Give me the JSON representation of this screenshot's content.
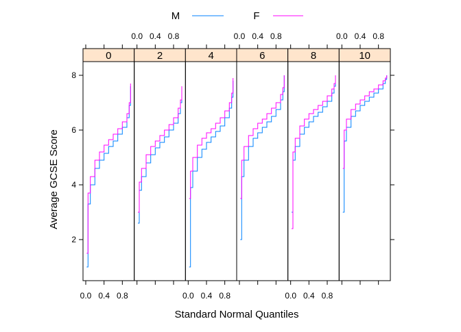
{
  "chart_data": {
    "type": "line",
    "plot_kind": "empirical quantile (step) curves, trellis panels",
    "xlabel": "Standard Normal Quantiles",
    "ylabel": "Average GCSE Score",
    "xlim": [
      0,
      1
    ],
    "ylim": [
      0.5,
      8.5
    ],
    "x_ticks": [
      0.0,
      0.4,
      0.8
    ],
    "x_tick_labels": [
      "0.0",
      "0.4",
      "0.8"
    ],
    "y_ticks": [
      2,
      4,
      6,
      8
    ],
    "y_tick_labels": [
      "2",
      "4",
      "6",
      "8"
    ],
    "grid": false,
    "legend": {
      "position": "top",
      "entries": [
        {
          "label": "M",
          "color": "#0080ff"
        },
        {
          "label": "F",
          "color": "#ff00ff"
        }
      ]
    },
    "strip_color": "#ffe5cc",
    "panels": [
      {
        "label": "0",
        "series": [
          {
            "name": "M",
            "x": [
              0.02,
              0.05,
              0.1,
              0.2,
              0.3,
              0.4,
              0.5,
              0.6,
              0.7,
              0.8,
              0.9,
              0.95,
              0.98
            ],
            "y": [
              1.0,
              3.3,
              4.0,
              4.6,
              4.9,
              5.15,
              5.4,
              5.6,
              5.85,
              6.1,
              6.45,
              6.9,
              7.6
            ]
          },
          {
            "name": "F",
            "x": [
              0.02,
              0.05,
              0.1,
              0.2,
              0.3,
              0.4,
              0.5,
              0.6,
              0.7,
              0.8,
              0.9,
              0.95,
              0.98
            ],
            "y": [
              1.5,
              3.7,
              4.3,
              4.9,
              5.2,
              5.45,
              5.65,
              5.85,
              6.05,
              6.3,
              6.6,
              7.0,
              7.7
            ]
          }
        ]
      },
      {
        "label": "2",
        "series": [
          {
            "name": "M",
            "x": [
              0.02,
              0.05,
              0.1,
              0.2,
              0.3,
              0.4,
              0.5,
              0.6,
              0.7,
              0.8,
              0.9,
              0.95,
              0.98
            ],
            "y": [
              2.6,
              3.8,
              4.3,
              4.8,
              5.1,
              5.35,
              5.55,
              5.75,
              6.0,
              6.25,
              6.6,
              7.0,
              7.6
            ]
          },
          {
            "name": "F",
            "x": [
              0.02,
              0.05,
              0.1,
              0.2,
              0.3,
              0.4,
              0.5,
              0.6,
              0.7,
              0.8,
              0.9,
              0.95,
              0.98
            ],
            "y": [
              3.0,
              4.1,
              4.6,
              5.1,
              5.4,
              5.6,
              5.8,
              6.0,
              6.2,
              6.45,
              6.8,
              7.1,
              7.6
            ]
          }
        ]
      },
      {
        "label": "4",
        "series": [
          {
            "name": "M",
            "x": [
              0.02,
              0.05,
              0.1,
              0.2,
              0.3,
              0.4,
              0.5,
              0.6,
              0.7,
              0.8,
              0.9,
              0.95,
              0.98
            ],
            "y": [
              1.0,
              3.9,
              4.5,
              5.0,
              5.3,
              5.55,
              5.75,
              5.95,
              6.15,
              6.45,
              6.8,
              7.2,
              7.8
            ]
          },
          {
            "name": "F",
            "x": [
              0.02,
              0.05,
              0.1,
              0.2,
              0.3,
              0.4,
              0.5,
              0.6,
              0.7,
              0.8,
              0.9,
              0.95,
              0.98
            ],
            "y": [
              3.5,
              4.5,
              5.0,
              5.45,
              5.7,
              5.9,
              6.05,
              6.25,
              6.45,
              6.7,
              7.0,
              7.35,
              7.9
            ]
          }
        ]
      },
      {
        "label": "6",
        "series": [
          {
            "name": "M",
            "x": [
              0.02,
              0.05,
              0.1,
              0.2,
              0.3,
              0.4,
              0.5,
              0.6,
              0.7,
              0.8,
              0.9,
              0.95,
              0.98
            ],
            "y": [
              2.0,
              4.3,
              4.9,
              5.4,
              5.7,
              5.9,
              6.1,
              6.3,
              6.5,
              6.75,
              7.1,
              7.4,
              8.0
            ]
          },
          {
            "name": "F",
            "x": [
              0.02,
              0.05,
              0.1,
              0.2,
              0.3,
              0.4,
              0.5,
              0.6,
              0.7,
              0.8,
              0.9,
              0.95,
              0.98
            ],
            "y": [
              3.5,
              4.9,
              5.4,
              5.8,
              6.05,
              6.25,
              6.4,
              6.6,
              6.8,
              7.0,
              7.3,
              7.55,
              8.0
            ]
          }
        ]
      },
      {
        "label": "8",
        "series": [
          {
            "name": "M",
            "x": [
              0.02,
              0.05,
              0.1,
              0.2,
              0.3,
              0.4,
              0.5,
              0.6,
              0.7,
              0.8,
              0.9,
              0.95,
              0.98
            ],
            "y": [
              3.0,
              4.9,
              5.4,
              5.85,
              6.1,
              6.3,
              6.5,
              6.65,
              6.85,
              7.05,
              7.35,
              7.6,
              8.0
            ]
          },
          {
            "name": "F",
            "x": [
              0.02,
              0.05,
              0.1,
              0.2,
              0.3,
              0.4,
              0.5,
              0.6,
              0.7,
              0.8,
              0.9,
              0.95,
              0.98
            ],
            "y": [
              2.4,
              5.2,
              5.7,
              6.15,
              6.4,
              6.6,
              6.75,
              6.9,
              7.05,
              7.25,
              7.5,
              7.7,
              8.0
            ]
          }
        ]
      },
      {
        "label": "10",
        "series": [
          {
            "name": "M",
            "x": [
              0.02,
              0.05,
              0.1,
              0.2,
              0.3,
              0.4,
              0.5,
              0.6,
              0.7,
              0.8,
              0.9,
              0.95,
              0.98
            ],
            "y": [
              3.0,
              5.6,
              6.1,
              6.5,
              6.7,
              6.9,
              7.05,
              7.2,
              7.35,
              7.5,
              7.7,
              7.85,
              8.0
            ]
          },
          {
            "name": "F",
            "x": [
              0.02,
              0.05,
              0.1,
              0.2,
              0.3,
              0.4,
              0.5,
              0.6,
              0.7,
              0.8,
              0.9,
              0.95,
              0.98
            ],
            "y": [
              4.6,
              6.0,
              6.4,
              6.75,
              6.95,
              7.1,
              7.25,
              7.4,
              7.5,
              7.65,
              7.8,
              7.9,
              8.0
            ]
          }
        ]
      }
    ]
  }
}
